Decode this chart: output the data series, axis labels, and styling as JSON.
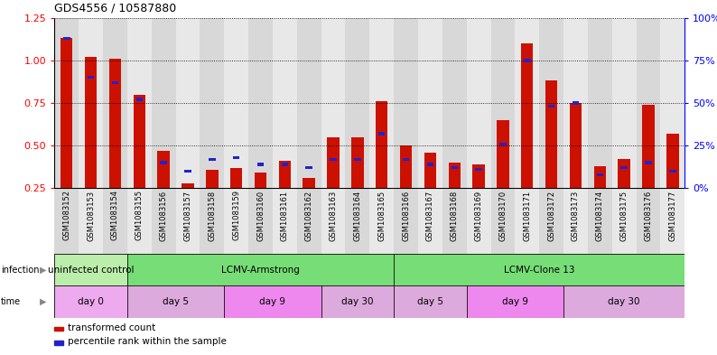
{
  "title": "GDS4556 / 10587880",
  "samples": [
    "GSM1083152",
    "GSM1083153",
    "GSM1083154",
    "GSM1083155",
    "GSM1083156",
    "GSM1083157",
    "GSM1083158",
    "GSM1083159",
    "GSM1083160",
    "GSM1083161",
    "GSM1083162",
    "GSM1083163",
    "GSM1083164",
    "GSM1083165",
    "GSM1083166",
    "GSM1083167",
    "GSM1083168",
    "GSM1083169",
    "GSM1083170",
    "GSM1083171",
    "GSM1083172",
    "GSM1083173",
    "GSM1083174",
    "GSM1083175",
    "GSM1083176",
    "GSM1083177"
  ],
  "red_values": [
    1.13,
    1.02,
    1.01,
    0.8,
    0.47,
    0.28,
    0.36,
    0.37,
    0.34,
    0.41,
    0.31,
    0.55,
    0.55,
    0.76,
    0.5,
    0.46,
    0.4,
    0.39,
    0.65,
    1.1,
    0.88,
    0.75,
    0.38,
    0.42,
    0.74,
    0.57
  ],
  "blue_values": [
    88,
    65,
    62,
    52,
    15,
    10,
    17,
    18,
    14,
    14,
    12,
    17,
    17,
    32,
    17,
    14,
    12,
    11,
    26,
    75,
    48,
    50,
    8,
    12,
    15,
    10
  ],
  "ylim_left": [
    0.25,
    1.25
  ],
  "ylim_right": [
    0,
    100
  ],
  "yticks_left": [
    0.25,
    0.5,
    0.75,
    1.0,
    1.25
  ],
  "yticks_right": [
    0,
    25,
    50,
    75,
    100
  ],
  "ytick_labels_right": [
    "0%",
    "25%",
    "50%",
    "75%",
    "100%"
  ],
  "bar_color": "#cc1100",
  "marker_color": "#2222cc",
  "bar_bottom": 0.25,
  "infection_groups": [
    {
      "label": "uninfected control",
      "start": 0,
      "end": 3,
      "color": "#bbeeaa"
    },
    {
      "label": "LCMV-Armstrong",
      "start": 3,
      "end": 14,
      "color": "#77dd77"
    },
    {
      "label": "LCMV-Clone 13",
      "start": 14,
      "end": 26,
      "color": "#77dd77"
    }
  ],
  "time_groups": [
    {
      "label": "day 0",
      "start": 0,
      "end": 3,
      "color": "#eeaaee"
    },
    {
      "label": "day 5",
      "start": 3,
      "end": 7,
      "color": "#ddaadd"
    },
    {
      "label": "day 9",
      "start": 7,
      "end": 11,
      "color": "#ee88ee"
    },
    {
      "label": "day 30",
      "start": 11,
      "end": 14,
      "color": "#ddaadd"
    },
    {
      "label": "day 5",
      "start": 14,
      "end": 17,
      "color": "#ddaadd"
    },
    {
      "label": "day 9",
      "start": 17,
      "end": 21,
      "color": "#ee88ee"
    },
    {
      "label": "day 30",
      "start": 21,
      "end": 26,
      "color": "#ddaadd"
    }
  ],
  "legend_transformed": "transformed count",
  "legend_percentile": "percentile rank within the sample",
  "col_bg_even": "#d8d8d8",
  "col_bg_odd": "#e8e8e8"
}
